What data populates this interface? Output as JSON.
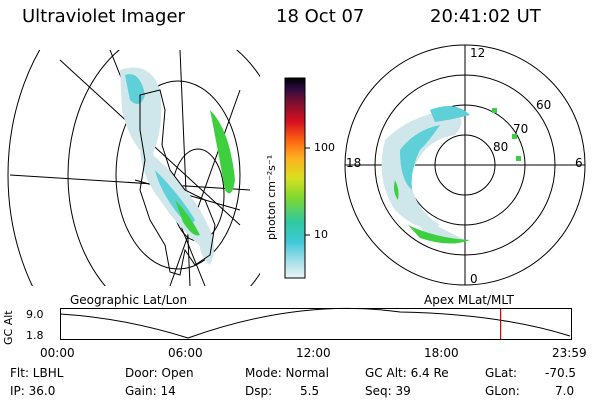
{
  "header": {
    "instrument": "Ultraviolet Imager",
    "date": "18 Oct 07",
    "time": "20:41:02 UT"
  },
  "geo_panel": {
    "label": "Geographic Lat/Lon"
  },
  "apex_panel": {
    "label": "Apex MLat/MLT",
    "mlt_labels": {
      "top": "12",
      "left": "18",
      "right": "6",
      "bottom": "0"
    },
    "lat_labels": [
      "60",
      "70",
      "80"
    ]
  },
  "colorbar": {
    "unit": "photon cm⁻²s⁻¹",
    "ticks": [
      "100",
      "10"
    ]
  },
  "altitude_plot": {
    "ylabel": "GC Alt",
    "yticks": [
      "9.0",
      "1.8"
    ],
    "xticks": [
      "00:00",
      "06:00",
      "12:00",
      "18:00",
      "23:59"
    ],
    "current_time_fraction": 0.862,
    "marker_color": "#cc0000"
  },
  "info": {
    "filter": "Flt: LBHL",
    "ip": "IP: 36.0",
    "door": "Door: Open",
    "gain": "Gain: 14",
    "mode": "Mode: Normal",
    "dsp_label": "Dsp:",
    "dsp_value": "5.5",
    "gc_alt": "GC Alt: 6.4 Re",
    "seq": "Seq: 39",
    "glat_label": "GLat:",
    "glat_value": "-70.5",
    "glon_label": "GLon:",
    "glon_value": "7.0"
  },
  "colors": {
    "aurora_cyan": "#5fd0d8",
    "aurora_green": "#3ecf3e",
    "aurora_light": "#cfe6ea",
    "marker": "#cc0000"
  }
}
